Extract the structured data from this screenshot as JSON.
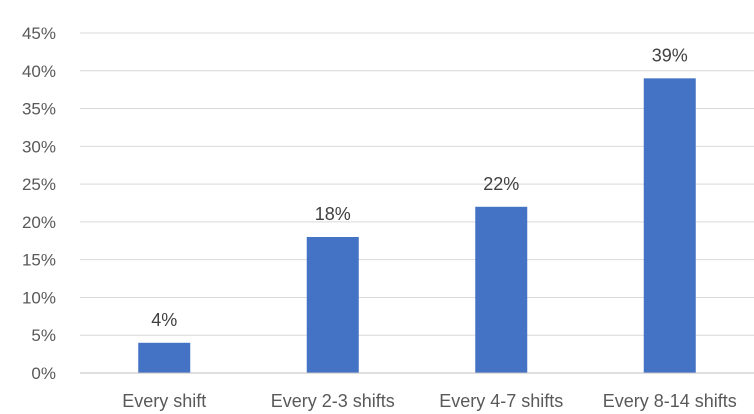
{
  "chart_data": {
    "type": "bar",
    "categories": [
      "Every shift",
      "Every 2-3 shifts",
      "Every 4-7 shifts",
      "Every 8-14 shifts"
    ],
    "values": [
      4,
      18,
      22,
      39
    ],
    "data_labels": [
      "4%",
      "18%",
      "22%",
      "39%"
    ],
    "ylim": [
      0,
      45
    ],
    "y_ticks": [
      0,
      5,
      10,
      15,
      20,
      25,
      30,
      35,
      40,
      45
    ],
    "y_tick_labels": [
      "0%",
      "5%",
      "10%",
      "15%",
      "20%",
      "25%",
      "30%",
      "35%",
      "40%",
      "45%"
    ],
    "grid": true,
    "legend": "none",
    "bar_color": "#4472c4"
  }
}
